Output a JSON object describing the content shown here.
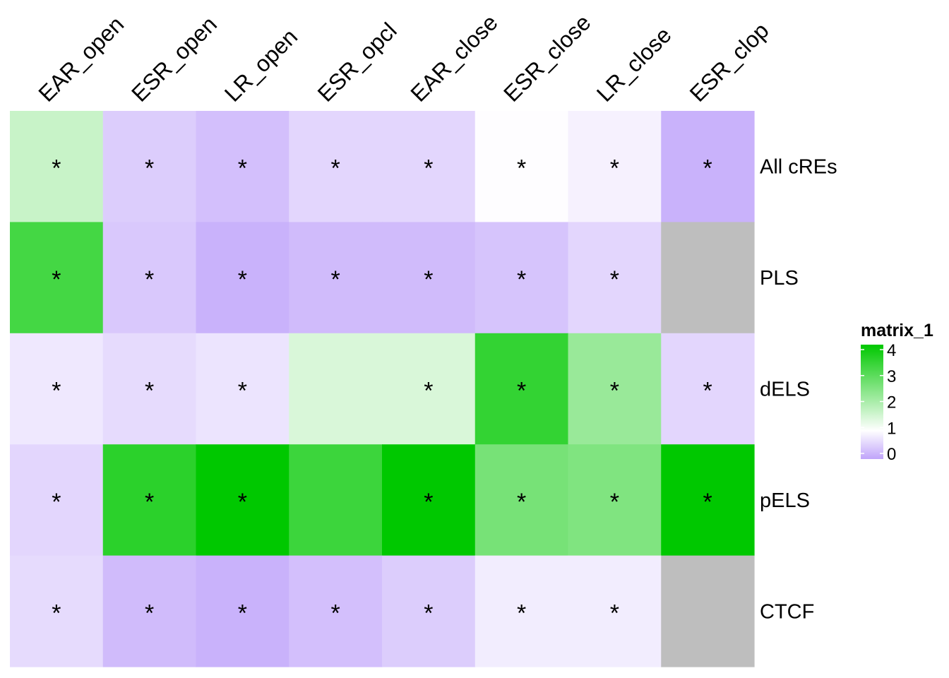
{
  "chart_data": {
    "type": "heatmap",
    "columns": [
      "EAR_open",
      "ESR_open",
      "LR_open",
      "ESR_opcl",
      "EAR_close",
      "ESR_close",
      "LR_close",
      "ESR_clop"
    ],
    "rows": [
      "All cREs",
      "PLS",
      "dELS",
      "pELS",
      "CTCF"
    ],
    "values": [
      [
        1.65,
        0.45,
        0.3,
        0.55,
        0.55,
        0.98,
        0.85,
        0.15
      ],
      [
        3.2,
        0.4,
        0.15,
        0.25,
        0.25,
        0.35,
        0.55,
        null
      ],
      [
        0.75,
        0.6,
        0.7,
        1.45,
        1.45,
        3.4,
        2.2,
        0.55
      ],
      [
        0.55,
        3.5,
        4.0,
        3.3,
        4.0,
        2.6,
        2.5,
        4.0
      ],
      [
        0.6,
        0.25,
        0.15,
        0.3,
        0.45,
        0.8,
        0.8,
        null
      ]
    ],
    "significance": [
      [
        true,
        true,
        true,
        true,
        true,
        true,
        true,
        true
      ],
      [
        true,
        true,
        true,
        true,
        true,
        true,
        true,
        false
      ],
      [
        true,
        true,
        true,
        false,
        true,
        true,
        true,
        true
      ],
      [
        true,
        true,
        true,
        false,
        true,
        true,
        true,
        true
      ],
      [
        true,
        true,
        true,
        true,
        true,
        true,
        true,
        false
      ]
    ],
    "na_color": "#bebebe",
    "color_scale": {
      "breaks": [
        0,
        1,
        4
      ],
      "colors": [
        "#c0a4fa",
        "#ffffff",
        "#00c800"
      ]
    },
    "legend": {
      "title": "matrix_1",
      "ticks": [
        4,
        3,
        2,
        1,
        0
      ],
      "tick_labels": [
        "4",
        "3",
        "2",
        "1",
        "0"
      ],
      "placement": "right"
    },
    "marker": "*"
  }
}
